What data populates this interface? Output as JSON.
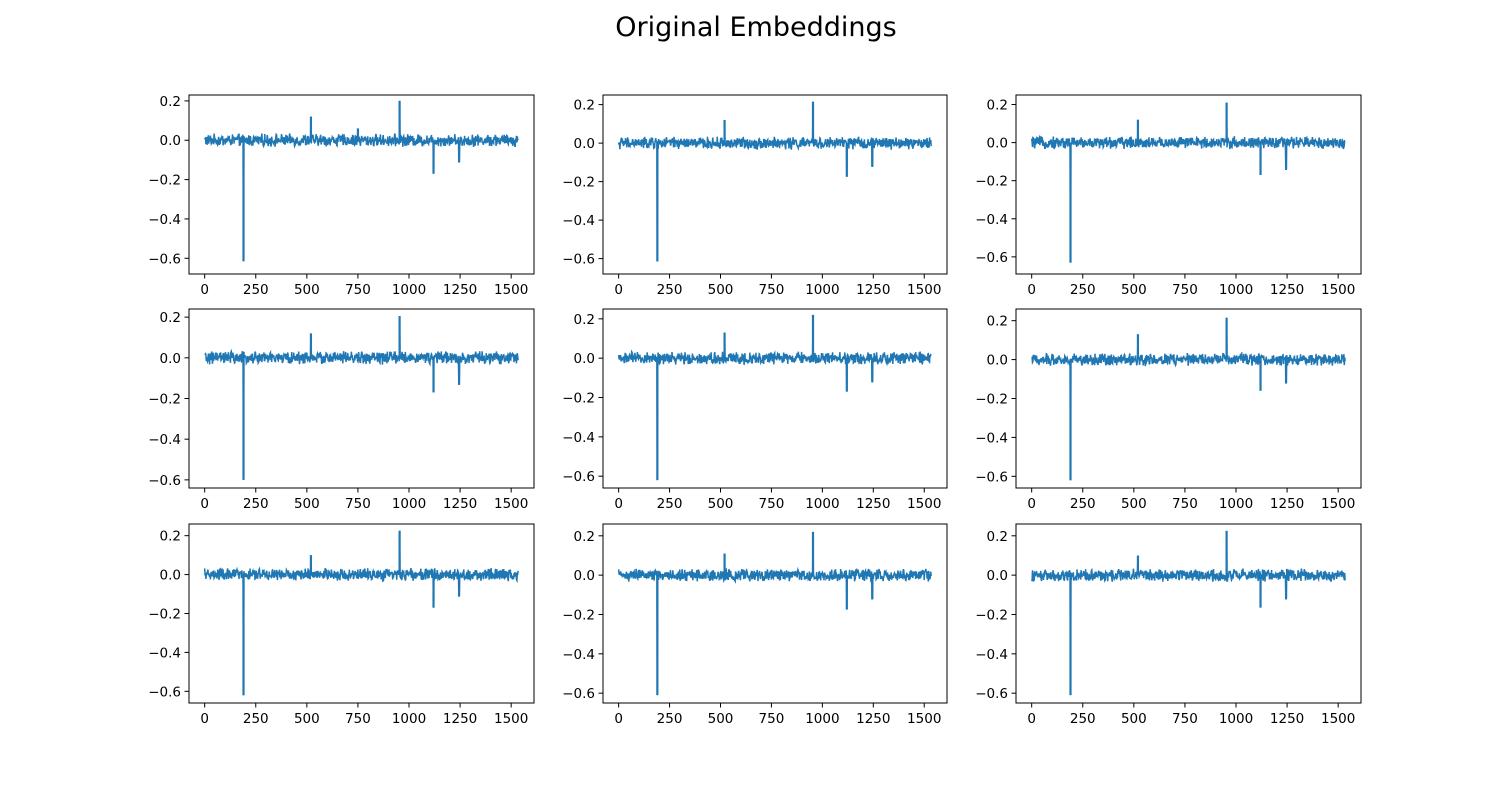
{
  "figure": {
    "title": "Original Embeddings"
  },
  "style": {
    "line_color": "#1f77b4",
    "axes_color": "#000000",
    "background": "#ffffff"
  },
  "chart_data": [
    {
      "type": "line",
      "x_range": [
        0,
        1535
      ],
      "xticks": [
        0,
        250,
        500,
        750,
        1000,
        1250,
        1500
      ],
      "xtick_labels": [
        "0",
        "250",
        "500",
        "750",
        "1000",
        "1250",
        "1500"
      ],
      "ylim": [
        -0.68,
        0.23
      ],
      "yticks": [
        -0.6,
        -0.4,
        -0.2,
        0.0,
        0.2
      ],
      "ytick_labels": [
        "−0.6",
        "−0.4",
        "−0.2",
        "0.0",
        "0.2"
      ],
      "noise_amplitude": 0.025,
      "spikes": [
        {
          "x": 190,
          "y": -0.615
        },
        {
          "x": 520,
          "y": 0.12
        },
        {
          "x": 750,
          "y": 0.06
        },
        {
          "x": 954,
          "y": 0.2
        },
        {
          "x": 1120,
          "y": -0.17
        },
        {
          "x": 1245,
          "y": -0.11
        }
      ],
      "series": [
        {
          "values_summary": "embedding dimensions 0–1535"
        }
      ]
    },
    {
      "type": "line",
      "x_range": [
        0,
        1535
      ],
      "xticks": [
        0,
        250,
        500,
        750,
        1000,
        1250,
        1500
      ],
      "xtick_labels": [
        "0",
        "250",
        "500",
        "750",
        "1000",
        "1250",
        "1500"
      ],
      "ylim": [
        -0.68,
        0.25
      ],
      "yticks": [
        -0.6,
        -0.4,
        -0.2,
        0.0,
        0.2
      ],
      "ytick_labels": [
        "−0.6",
        "−0.4",
        "−0.2",
        "0.0",
        "0.2"
      ],
      "noise_amplitude": 0.025,
      "spikes": [
        {
          "x": 190,
          "y": -0.615
        },
        {
          "x": 520,
          "y": 0.12
        },
        {
          "x": 954,
          "y": 0.215
        },
        {
          "x": 1120,
          "y": -0.175
        },
        {
          "x": 1245,
          "y": -0.12
        }
      ],
      "series": [
        {
          "values_summary": "embedding dimensions 0–1535"
        }
      ]
    },
    {
      "type": "line",
      "x_range": [
        0,
        1535
      ],
      "xticks": [
        0,
        250,
        500,
        750,
        1000,
        1250,
        1500
      ],
      "xtick_labels": [
        "0",
        "250",
        "500",
        "750",
        "1000",
        "1250",
        "1500"
      ],
      "ylim": [
        -0.69,
        0.25
      ],
      "yticks": [
        -0.6,
        -0.4,
        -0.2,
        0.0,
        0.2
      ],
      "ytick_labels": [
        "−0.6",
        "−0.4",
        "−0.2",
        "0.0",
        "0.2"
      ],
      "noise_amplitude": 0.025,
      "spikes": [
        {
          "x": 190,
          "y": -0.63
        },
        {
          "x": 520,
          "y": 0.12
        },
        {
          "x": 954,
          "y": 0.21
        },
        {
          "x": 1120,
          "y": -0.17
        },
        {
          "x": 1245,
          "y": -0.14
        }
      ],
      "series": [
        {
          "values_summary": "embedding dimensions 0–1535"
        }
      ]
    },
    {
      "type": "line",
      "x_range": [
        0,
        1535
      ],
      "xticks": [
        0,
        250,
        500,
        750,
        1000,
        1250,
        1500
      ],
      "xtick_labels": [
        "0",
        "250",
        "500",
        "750",
        "1000",
        "1250",
        "1500"
      ],
      "ylim": [
        -0.64,
        0.24
      ],
      "yticks": [
        -0.6,
        -0.4,
        -0.2,
        0.0,
        0.2
      ],
      "ytick_labels": [
        "−0.6",
        "−0.4",
        "−0.2",
        "0.0",
        "0.2"
      ],
      "noise_amplitude": 0.025,
      "spikes": [
        {
          "x": 190,
          "y": -0.6
        },
        {
          "x": 520,
          "y": 0.12
        },
        {
          "x": 954,
          "y": 0.205
        },
        {
          "x": 1120,
          "y": -0.17
        },
        {
          "x": 1245,
          "y": -0.13
        }
      ],
      "series": [
        {
          "values_summary": "embedding dimensions 0–1535"
        }
      ]
    },
    {
      "type": "line",
      "x_range": [
        0,
        1535
      ],
      "xticks": [
        0,
        250,
        500,
        750,
        1000,
        1250,
        1500
      ],
      "xtick_labels": [
        "0",
        "250",
        "500",
        "750",
        "1000",
        "1250",
        "1500"
      ],
      "ylim": [
        -0.66,
        0.25
      ],
      "yticks": [
        -0.6,
        -0.4,
        -0.2,
        0.0,
        0.2
      ],
      "ytick_labels": [
        "−0.6",
        "−0.4",
        "−0.2",
        "0.0",
        "0.2"
      ],
      "noise_amplitude": 0.025,
      "spikes": [
        {
          "x": 190,
          "y": -0.62
        },
        {
          "x": 520,
          "y": 0.13
        },
        {
          "x": 954,
          "y": 0.22
        },
        {
          "x": 1120,
          "y": -0.17
        },
        {
          "x": 1245,
          "y": -0.12
        }
      ],
      "series": [
        {
          "values_summary": "embedding dimensions 0–1535"
        }
      ]
    },
    {
      "type": "line",
      "x_range": [
        0,
        1535
      ],
      "xticks": [
        0,
        250,
        500,
        750,
        1000,
        1250,
        1500
      ],
      "xtick_labels": [
        "0",
        "250",
        "500",
        "750",
        "1000",
        "1250",
        "1500"
      ],
      "ylim": [
        -0.66,
        0.26
      ],
      "yticks": [
        -0.6,
        -0.4,
        -0.2,
        0.0,
        0.2
      ],
      "ytick_labels": [
        "−0.6",
        "−0.4",
        "−0.2",
        "0.0",
        "0.2"
      ],
      "noise_amplitude": 0.025,
      "spikes": [
        {
          "x": 190,
          "y": -0.62
        },
        {
          "x": 520,
          "y": 0.13
        },
        {
          "x": 954,
          "y": 0.215
        },
        {
          "x": 1120,
          "y": -0.16
        },
        {
          "x": 1245,
          "y": -0.12
        }
      ],
      "series": [
        {
          "values_summary": "embedding dimensions 0–1535"
        }
      ]
    },
    {
      "type": "line",
      "x_range": [
        0,
        1535
      ],
      "xticks": [
        0,
        250,
        500,
        750,
        1000,
        1250,
        1500
      ],
      "xtick_labels": [
        "0",
        "250",
        "500",
        "750",
        "1000",
        "1250",
        "1500"
      ],
      "ylim": [
        -0.66,
        0.26
      ],
      "yticks": [
        -0.6,
        -0.4,
        -0.2,
        0.0,
        0.2
      ],
      "ytick_labels": [
        "−0.6",
        "−0.4",
        "−0.2",
        "0.0",
        "0.2"
      ],
      "noise_amplitude": 0.025,
      "spikes": [
        {
          "x": 190,
          "y": -0.62
        },
        {
          "x": 520,
          "y": 0.1
        },
        {
          "x": 954,
          "y": 0.225
        },
        {
          "x": 1120,
          "y": -0.17
        },
        {
          "x": 1245,
          "y": -0.11
        }
      ],
      "series": [
        {
          "values_summary": "embedding dimensions 0–1535"
        }
      ]
    },
    {
      "type": "line",
      "x_range": [
        0,
        1535
      ],
      "xticks": [
        0,
        250,
        500,
        750,
        1000,
        1250,
        1500
      ],
      "xtick_labels": [
        "0",
        "250",
        "500",
        "750",
        "1000",
        "1250",
        "1500"
      ],
      "ylim": [
        -0.65,
        0.26
      ],
      "yticks": [
        -0.6,
        -0.4,
        -0.2,
        0.0,
        0.2
      ],
      "ytick_labels": [
        "−0.6",
        "−0.4",
        "−0.2",
        "0.0",
        "0.2"
      ],
      "noise_amplitude": 0.025,
      "spikes": [
        {
          "x": 190,
          "y": -0.61
        },
        {
          "x": 520,
          "y": 0.11
        },
        {
          "x": 954,
          "y": 0.22
        },
        {
          "x": 1120,
          "y": -0.175
        },
        {
          "x": 1245,
          "y": -0.12
        }
      ],
      "series": [
        {
          "values_summary": "embedding dimensions 0–1535"
        }
      ]
    },
    {
      "type": "line",
      "x_range": [
        0,
        1535
      ],
      "xticks": [
        0,
        250,
        500,
        750,
        1000,
        1250,
        1500
      ],
      "xtick_labels": [
        "0",
        "250",
        "500",
        "750",
        "1000",
        "1250",
        "1500"
      ],
      "ylim": [
        -0.65,
        0.26
      ],
      "yticks": [
        -0.6,
        -0.4,
        -0.2,
        0.0,
        0.2
      ],
      "ytick_labels": [
        "−0.6",
        "−0.4",
        "−0.2",
        "0.0",
        "0.2"
      ],
      "noise_amplitude": 0.025,
      "spikes": [
        {
          "x": 190,
          "y": -0.61
        },
        {
          "x": 520,
          "y": 0.1
        },
        {
          "x": 954,
          "y": 0.225
        },
        {
          "x": 1120,
          "y": -0.165
        },
        {
          "x": 1245,
          "y": -0.12
        }
      ],
      "series": [
        {
          "values_summary": "embedding dimensions 0–1535"
        }
      ]
    }
  ]
}
